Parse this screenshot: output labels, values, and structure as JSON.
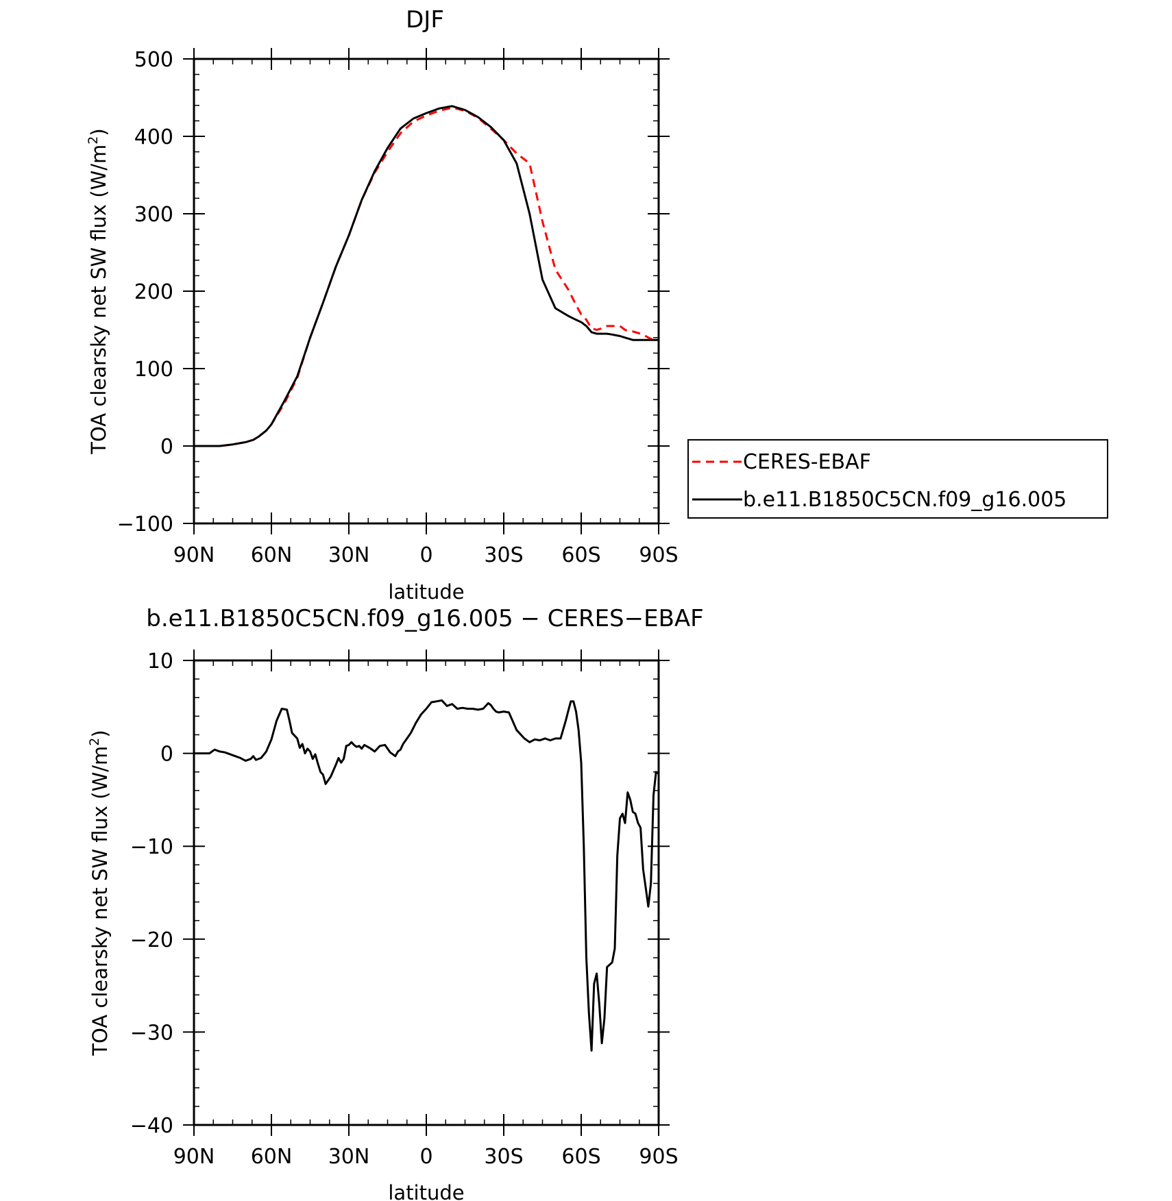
{
  "chart_data": [
    {
      "type": "line",
      "title": "DJF",
      "xlabel": "latitude",
      "ylabel": "TOA clearsky net SW flux (W/m",
      "ylabel_sup": "2",
      "ylabel_close": ")",
      "xlim": [
        -90,
        90
      ],
      "ylim": [
        -100,
        500
      ],
      "xticks": [
        -90,
        -60,
        -30,
        0,
        30,
        60,
        90
      ],
      "xtick_labels": [
        "90N",
        "60N",
        "30N",
        "0",
        "30S",
        "60S",
        "90S"
      ],
      "yticks": [
        -100,
        0,
        100,
        200,
        300,
        400,
        500
      ],
      "ytick_labels": [
        "−100",
        "0",
        "100",
        "200",
        "300",
        "400",
        "500"
      ],
      "legend_position": "right",
      "series": [
        {
          "name": "CERES-EBAF",
          "color": "#ff0000",
          "style": "dashed",
          "x": [
            -90,
            -80,
            -75,
            -70,
            -67,
            -65,
            -62,
            -60,
            -55,
            -50,
            -45,
            -40,
            -35,
            -30,
            -25,
            -20,
            -15,
            -10,
            -5,
            0,
            5,
            10,
            15,
            20,
            25,
            30,
            35,
            40,
            45,
            50,
            55,
            58,
            60,
            62,
            64,
            66,
            68,
            70,
            72,
            75,
            77,
            79,
            80,
            82,
            84,
            86,
            88,
            90
          ],
          "y": [
            0,
            0,
            2,
            5,
            8,
            12,
            20,
            28,
            55,
            88,
            140,
            185,
            232,
            272,
            318,
            353,
            380,
            404,
            419,
            427,
            433,
            437,
            433,
            424,
            410,
            395,
            378,
            365,
            290,
            228,
            202,
            182,
            170,
            163,
            152,
            150,
            152,
            155,
            155,
            155,
            150,
            148,
            148,
            146,
            144,
            140,
            137,
            137
          ]
        },
        {
          "name": "b.e11.B1850C5CN.f09_g16.005",
          "color": "#000000",
          "style": "solid",
          "x": [
            -90,
            -80,
            -75,
            -70,
            -67,
            -65,
            -62,
            -60,
            -55,
            -50,
            -45,
            -40,
            -35,
            -30,
            -25,
            -20,
            -15,
            -10,
            -5,
            0,
            5,
            10,
            15,
            20,
            25,
            30,
            35,
            40,
            45,
            50,
            55,
            58,
            60,
            62,
            64,
            66,
            68,
            70,
            72,
            75,
            77,
            79,
            80,
            82,
            84,
            86,
            88,
            90
          ],
          "y": [
            0,
            0,
            2,
            5,
            8,
            12,
            20,
            28,
            58,
            90,
            140,
            185,
            232,
            272,
            318,
            355,
            385,
            410,
            423,
            430,
            436,
            439,
            434,
            425,
            412,
            395,
            365,
            300,
            215,
            178,
            168,
            163,
            160,
            155,
            147,
            145,
            145,
            145,
            144,
            142,
            140,
            138,
            137,
            137,
            137,
            137,
            137,
            137
          ]
        }
      ]
    },
    {
      "type": "line",
      "title": "b.e11.B1850C5CN.f09_g16.005 − CERES−EBAF",
      "xlabel": "latitude",
      "ylabel": "TOA clearsky net SW flux (W/m",
      "ylabel_sup": "2",
      "ylabel_close": ")",
      "xlim": [
        -90,
        90
      ],
      "ylim": [
        -40,
        10
      ],
      "xticks": [
        -90,
        -60,
        -30,
        0,
        30,
        60,
        90
      ],
      "xtick_labels": [
        "90N",
        "60N",
        "30N",
        "0",
        "30S",
        "60S",
        "90S"
      ],
      "yticks": [
        -40,
        -30,
        -20,
        -10,
        0,
        10
      ],
      "ytick_labels": [
        "−40",
        "−30",
        "−20",
        "−10",
        "0",
        "10"
      ],
      "series": [
        {
          "name": "",
          "color": "#000000",
          "style": "solid",
          "x": [
            -90,
            -84,
            -82,
            -80,
            -78,
            -75,
            -72,
            -70,
            -68,
            -67,
            -66,
            -64,
            -62,
            -60,
            -58,
            -56,
            -54,
            -53,
            -52,
            -50,
            -49,
            -48,
            -47,
            -46,
            -45,
            -44,
            -43,
            -42,
            -41,
            -40,
            -39,
            -37,
            -35,
            -34,
            -33,
            -32,
            -31,
            -30,
            -29,
            -28,
            -27,
            -26,
            -25,
            -24,
            -22,
            -20,
            -18,
            -16,
            -15,
            -14,
            -12,
            -11,
            -10,
            -9,
            -8,
            -6,
            -4,
            -2,
            0,
            2,
            4,
            6,
            8,
            10,
            12,
            14,
            16,
            18,
            20,
            22,
            24,
            25,
            26,
            27,
            28,
            30,
            32,
            35,
            38,
            40,
            42,
            44,
            46,
            48,
            50,
            52,
            54,
            55,
            56,
            57,
            58,
            59,
            60,
            61,
            62,
            63,
            64,
            65,
            66,
            67,
            68,
            69,
            70,
            72,
            73,
            74,
            75,
            76,
            77,
            78,
            79,
            80,
            81,
            82,
            83,
            84,
            85,
            86,
            87,
            88,
            89,
            90
          ],
          "y": [
            0,
            0,
            0.4,
            0.2,
            0.1,
            -0.2,
            -0.5,
            -0.8,
            -0.6,
            -0.3,
            -0.7,
            -0.5,
            0.2,
            1.5,
            3.5,
            4.8,
            4.7,
            3.5,
            2.2,
            1.6,
            0.6,
            1.0,
            0.0,
            0.5,
            0.2,
            -0.6,
            -0.1,
            -1.1,
            -2.0,
            -2.3,
            -3.3,
            -2.5,
            -1.2,
            -0.5,
            -1.0,
            -0.6,
            0.8,
            0.9,
            1.2,
            0.9,
            0.7,
            0.8,
            0.5,
            0.9,
            0.6,
            0.2,
            0.8,
            0.9,
            0.5,
            0.1,
            -0.3,
            0.2,
            0.4,
            1.0,
            1.4,
            2.2,
            3.3,
            4.2,
            4.8,
            5.5,
            5.6,
            5.7,
            5.1,
            5.3,
            4.8,
            4.9,
            4.8,
            4.8,
            4.7,
            4.8,
            5.4,
            5.2,
            4.8,
            4.5,
            4.4,
            4.5,
            4.4,
            2.5,
            1.6,
            1.2,
            1.5,
            1.4,
            1.6,
            1.4,
            1.6,
            1.6,
            3.5,
            4.6,
            5.6,
            5.6,
            4.5,
            2.5,
            -1.0,
            -10.0,
            -22.0,
            -28.0,
            -32.0,
            -24.8,
            -23.7,
            -27.0,
            -31.2,
            -28.5,
            -23.0,
            -22.5,
            -21.0,
            -11.0,
            -7.0,
            -6.5,
            -7.5,
            -4.2,
            -5.0,
            -6.3,
            -6.5,
            -7.5,
            -8.0,
            -12.5,
            -14.5,
            -16.5,
            -14.0,
            -4.5,
            -2.0,
            -2.2
          ]
        }
      ]
    }
  ]
}
